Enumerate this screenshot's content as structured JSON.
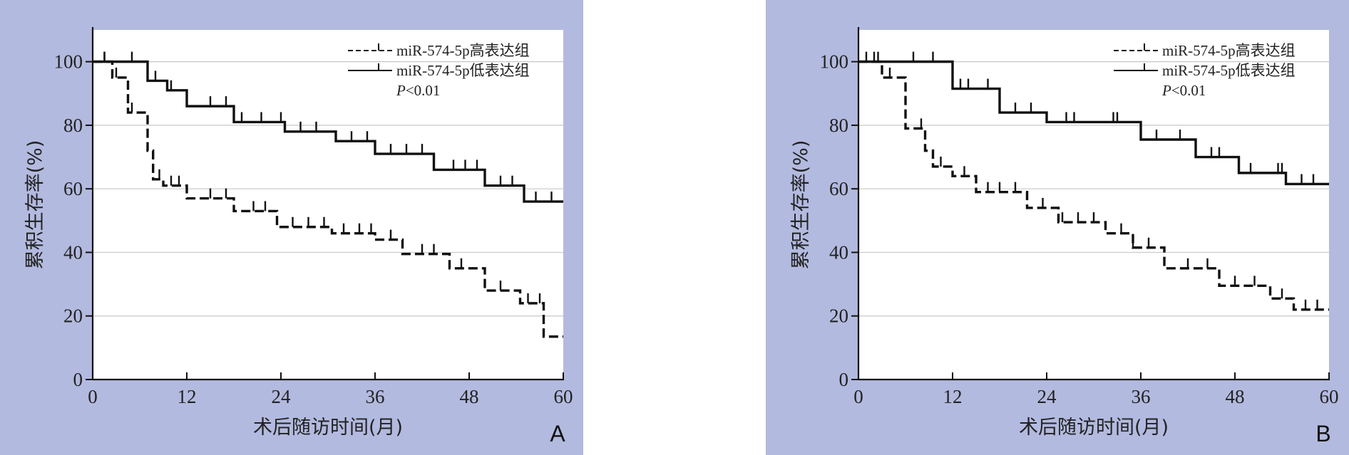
{
  "chart_data": [
    {
      "panel_label": "A",
      "type": "line",
      "step": true,
      "xlabel": "术后随访时间(月)",
      "ylabel": "累积生存率(%)",
      "xlim": [
        0,
        60
      ],
      "ylim": [
        0,
        110
      ],
      "xticks": [
        0,
        12,
        24,
        36,
        48,
        60
      ],
      "yticks": [
        0,
        20,
        40,
        60,
        80,
        100
      ],
      "grid": "horizontal",
      "legend_position": "top-right",
      "annotation_prefix": "P",
      "annotation_value": "<0.01",
      "series": [
        {
          "name": "miR-574-5p高表达组",
          "style": "dashed",
          "x": [
            0,
            2.5,
            4.5,
            7,
            7.7,
            9,
            12,
            18,
            23.5,
            30.5,
            36,
            39.5,
            45.5,
            50,
            54.5,
            57.5,
            60
          ],
          "y": [
            100,
            95,
            84,
            72,
            63,
            61,
            57,
            53,
            48,
            46,
            44,
            39.5,
            35,
            28,
            24,
            13.5,
            13.5
          ],
          "censored_x": [
            1.5,
            3,
            5,
            8.5,
            10,
            11,
            15,
            17,
            20.5,
            22,
            25.5,
            27.5,
            29.5,
            32,
            34,
            35.5,
            38,
            42,
            43.5,
            47,
            52,
            55.5,
            57
          ]
        },
        {
          "name": "miR-574-5p低表达组",
          "style": "solid",
          "x": [
            0,
            7,
            9.5,
            12,
            18,
            24.5,
            31,
            36,
            43.5,
            50,
            55,
            60
          ],
          "y": [
            100,
            94,
            91,
            86,
            81,
            78,
            75,
            71,
            66,
            61,
            56,
            56
          ],
          "censored_x": [
            1.5,
            5,
            8,
            10,
            15,
            17,
            19,
            21.5,
            24,
            26.5,
            28.5,
            33,
            35,
            38,
            40,
            42,
            46,
            47.5,
            49,
            52,
            53.5,
            56.5,
            58.5
          ]
        }
      ]
    },
    {
      "panel_label": "B",
      "type": "line",
      "step": true,
      "xlabel": "术后随访时间(月)",
      "ylabel": "累积生存率(%)",
      "xlim": [
        0,
        60
      ],
      "ylim": [
        0,
        110
      ],
      "xticks": [
        0,
        12,
        24,
        36,
        48,
        60
      ],
      "yticks": [
        0,
        20,
        40,
        60,
        80,
        100
      ],
      "grid": "horizontal",
      "legend_position": "top-right",
      "annotation_prefix": "P",
      "annotation_value": "<0.01",
      "series": [
        {
          "name": "miR-574-5p高表达组",
          "style": "dashed",
          "x": [
            0,
            3,
            6,
            8.5,
            9.5,
            12,
            15,
            21.5,
            25.5,
            31.5,
            35,
            39,
            46,
            52.5,
            55.5,
            60
          ],
          "y": [
            100,
            95,
            79,
            72,
            67,
            64,
            59,
            54,
            49.5,
            46,
            41.5,
            35,
            29.5,
            25.5,
            22,
            22
          ],
          "censored_x": [
            2,
            4,
            8,
            10.5,
            13.5,
            16.5,
            18,
            20,
            23.5,
            26,
            28,
            30,
            33.5,
            35,
            37,
            42,
            44.5,
            48,
            50.5,
            54,
            57,
            58.5
          ]
        },
        {
          "name": "miR-574-5p低表达组",
          "style": "solid",
          "x": [
            0,
            12,
            18,
            24,
            36,
            43,
            48.5,
            54.5,
            60
          ],
          "y": [
            100,
            91.5,
            84,
            81,
            75.5,
            70,
            65,
            61.5,
            61.5
          ],
          "censored_x": [
            1,
            2.5,
            7,
            9.5,
            13,
            14,
            16.5,
            20,
            22,
            26.5,
            27.5,
            32.5,
            33,
            38,
            41,
            45,
            46,
            50,
            53.5,
            54,
            56.5,
            58
          ]
        }
      ]
    }
  ]
}
